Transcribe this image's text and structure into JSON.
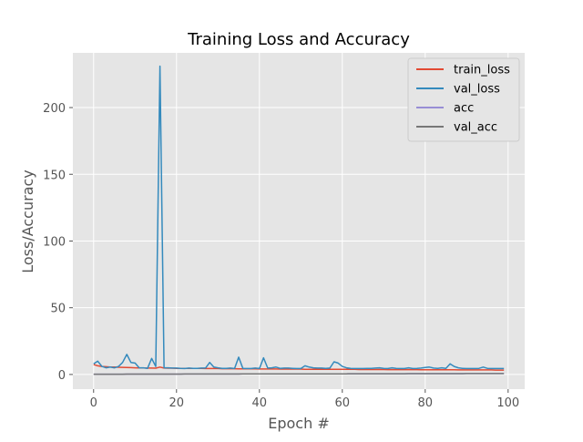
{
  "chart_data": {
    "type": "line",
    "title": "Training Loss and Accuracy",
    "xlabel": "Epoch #",
    "ylabel": "Loss/Accuracy",
    "xlim": [
      -5,
      104
    ],
    "ylim": [
      -11,
      241
    ],
    "xticks": [
      0,
      20,
      40,
      60,
      80,
      100
    ],
    "yticks": [
      0,
      50,
      100,
      150,
      200
    ],
    "grid": true,
    "legend_position": "top-right",
    "epochs": [
      0,
      1,
      2,
      3,
      4,
      5,
      6,
      7,
      8,
      9,
      10,
      11,
      12,
      13,
      14,
      15,
      16,
      17,
      18,
      19,
      20,
      21,
      22,
      23,
      24,
      25,
      26,
      27,
      28,
      29,
      30,
      31,
      32,
      33,
      34,
      35,
      36,
      37,
      38,
      39,
      40,
      41,
      42,
      43,
      44,
      45,
      46,
      47,
      48,
      49,
      50,
      51,
      52,
      53,
      54,
      55,
      56,
      57,
      58,
      59,
      60,
      61,
      62,
      63,
      64,
      65,
      66,
      67,
      68,
      69,
      70,
      71,
      72,
      73,
      74,
      75,
      76,
      77,
      78,
      79,
      80,
      81,
      82,
      83,
      84,
      85,
      86,
      87,
      88,
      89,
      90,
      91,
      92,
      93,
      94,
      95,
      96,
      97,
      98,
      99
    ],
    "series": [
      {
        "name": "train_loss",
        "color": "#E24A33",
        "values": [
          7.5,
          6.5,
          6,
          5.8,
          5.6,
          5.5,
          5.4,
          5.3,
          5.2,
          5.1,
          5,
          4.9,
          4.9,
          4.8,
          4.8,
          4.7,
          5.5,
          4.8,
          4.7,
          4.7,
          4.6,
          4.6,
          4.6,
          4.5,
          4.5,
          4.5,
          4.5,
          4.4,
          4.4,
          4.4,
          4.4,
          4.3,
          4.3,
          4.3,
          4.3,
          4.2,
          4.2,
          4.2,
          4.2,
          4.2,
          4.1,
          4.1,
          4.1,
          4.1,
          4.1,
          4,
          4,
          4,
          4,
          4,
          4,
          3.9,
          3.9,
          3.9,
          3.9,
          3.9,
          3.9,
          3.8,
          3.8,
          3.8,
          3.8,
          3.8,
          3.8,
          3.8,
          3.7,
          3.7,
          3.7,
          3.7,
          3.7,
          3.7,
          3.7,
          3.6,
          3.6,
          3.6,
          3.6,
          3.6,
          3.6,
          3.6,
          3.6,
          3.5,
          3.5,
          3.5,
          3.5,
          3.5,
          3.5,
          3.5,
          3.5,
          3.5,
          3.4,
          3.4,
          3.4,
          3.4,
          3.4,
          3.4,
          3.4,
          3.4,
          3.4,
          3.3,
          3.3,
          3.3
        ]
      },
      {
        "name": "val_loss",
        "color": "#348ABD",
        "values": [
          8,
          10,
          6,
          5,
          5.5,
          5,
          6,
          9,
          15,
          9,
          8.5,
          5,
          5,
          4.5,
          12,
          6,
          231,
          5,
          5,
          4.8,
          4.8,
          4.6,
          4.4,
          4.8,
          4.6,
          4.6,
          4.8,
          4.8,
          9,
          5.5,
          5,
          4.6,
          4.6,
          4.8,
          4.4,
          13,
          4.6,
          4.4,
          4.4,
          4.8,
          4.4,
          12.5,
          4.8,
          5,
          5.5,
          4.6,
          4.8,
          4.8,
          4.6,
          4.4,
          4.4,
          6.5,
          5.5,
          5,
          4.8,
          4.8,
          4.6,
          4.8,
          9.5,
          8.5,
          6,
          5,
          4.6,
          4.4,
          4.4,
          4.4,
          4.6,
          4.6,
          4.8,
          5,
          4.6,
          4.4,
          5,
          4.6,
          4.4,
          4.4,
          5,
          4.4,
          4.6,
          4.8,
          5.2,
          5.5,
          4.8,
          4.6,
          5,
          4.6,
          8,
          6,
          5,
          4.6,
          4.4,
          4.4,
          4.4,
          4.6,
          5.5,
          4.6,
          4.4,
          4.4,
          4.4,
          4.4
        ]
      },
      {
        "name": "acc",
        "color": "#988ED5",
        "values": [
          0.2,
          0.2,
          0.21,
          0.21,
          0.22,
          0.22,
          0.23,
          0.23,
          0.24,
          0.24,
          0.25,
          0.25,
          0.26,
          0.26,
          0.27,
          0.27,
          0.28,
          0.28,
          0.29,
          0.29,
          0.3,
          0.3,
          0.31,
          0.31,
          0.32,
          0.32,
          0.33,
          0.33,
          0.34,
          0.34,
          0.35,
          0.35,
          0.36,
          0.36,
          0.37,
          0.37,
          0.38,
          0.38,
          0.39,
          0.39,
          0.4,
          0.4,
          0.41,
          0.41,
          0.42,
          0.42,
          0.43,
          0.43,
          0.44,
          0.44,
          0.45,
          0.45,
          0.46,
          0.46,
          0.47,
          0.47,
          0.48,
          0.48,
          0.49,
          0.49,
          0.5,
          0.5,
          0.51,
          0.51,
          0.52,
          0.52,
          0.53,
          0.53,
          0.54,
          0.54,
          0.55,
          0.55,
          0.56,
          0.56,
          0.57,
          0.57,
          0.58,
          0.58,
          0.59,
          0.59,
          0.6,
          0.6,
          0.61,
          0.61,
          0.62,
          0.62,
          0.63,
          0.63,
          0.64,
          0.64,
          0.65,
          0.65,
          0.66,
          0.66,
          0.67,
          0.67,
          0.68,
          0.68,
          0.69,
          0.69
        ]
      },
      {
        "name": "val_acc",
        "color": "#777777",
        "values": [
          0.2,
          0.2,
          0.21,
          0.21,
          0.22,
          0.22,
          0.23,
          0.23,
          0.24,
          0.24,
          0.25,
          0.25,
          0.26,
          0.26,
          0.27,
          0.27,
          0.28,
          0.28,
          0.29,
          0.29,
          0.3,
          0.3,
          0.31,
          0.31,
          0.32,
          0.32,
          0.33,
          0.33,
          0.34,
          0.34,
          0.35,
          0.35,
          0.36,
          0.36,
          0.37,
          0.37,
          0.38,
          0.38,
          0.39,
          0.39,
          0.4,
          0.4,
          0.41,
          0.41,
          0.42,
          0.42,
          0.43,
          0.43,
          0.44,
          0.44,
          0.45,
          0.45,
          0.46,
          0.46,
          0.47,
          0.47,
          0.48,
          0.48,
          0.49,
          0.49,
          0.5,
          0.5,
          0.51,
          0.51,
          0.52,
          0.52,
          0.53,
          0.53,
          0.54,
          0.54,
          0.55,
          0.55,
          0.56,
          0.56,
          0.57,
          0.57,
          0.58,
          0.58,
          0.59,
          0.59,
          0.6,
          0.6,
          0.61,
          0.61,
          0.62,
          0.62,
          0.63,
          0.63,
          0.64,
          0.64,
          0.65,
          0.65,
          0.66,
          0.66,
          0.67,
          0.67,
          0.68,
          0.68,
          0.69,
          0.69
        ]
      }
    ]
  }
}
